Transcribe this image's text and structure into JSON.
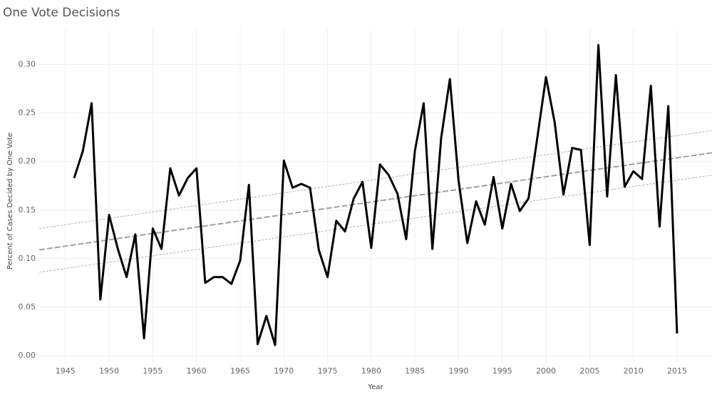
{
  "chart_data": {
    "type": "line",
    "title": "One Vote Decisions",
    "x_label": "Year",
    "y_label": "Percent of Cases Decided by One Vote",
    "x": [
      1946,
      1947,
      1948,
      1949,
      1950,
      1951,
      1952,
      1953,
      1954,
      1955,
      1956,
      1957,
      1958,
      1959,
      1960,
      1961,
      1962,
      1963,
      1964,
      1965,
      1966,
      1967,
      1968,
      1969,
      1970,
      1971,
      1972,
      1973,
      1974,
      1975,
      1976,
      1977,
      1978,
      1979,
      1980,
      1981,
      1982,
      1983,
      1984,
      1985,
      1986,
      1987,
      1988,
      1989,
      1990,
      1991,
      1992,
      1993,
      1994,
      1995,
      1996,
      1997,
      1998,
      1999,
      2000,
      2001,
      2002,
      2003,
      2004,
      2005,
      2006,
      2007,
      2008,
      2009,
      2010,
      2011,
      2012,
      2013,
      2014,
      2015
    ],
    "series": [
      {
        "color": "#000000",
        "values": [
          0.183,
          0.211,
          0.26,
          0.058,
          0.145,
          0.11,
          0.081,
          0.125,
          0.018,
          0.131,
          0.11,
          0.193,
          0.165,
          0.183,
          0.193,
          0.075,
          0.081,
          0.081,
          0.074,
          0.098,
          0.176,
          0.012,
          0.041,
          0.011,
          0.201,
          0.173,
          0.177,
          0.173,
          0.109,
          0.081,
          0.139,
          0.128,
          0.162,
          0.179,
          0.111,
          0.197,
          0.186,
          0.167,
          0.12,
          0.211,
          0.26,
          0.11,
          0.224,
          0.285,
          0.18,
          0.116,
          0.159,
          0.135,
          0.184,
          0.131,
          0.177,
          0.149,
          0.162,
          0.224,
          0.287,
          0.24,
          0.166,
          0.214,
          0.212,
          0.114,
          0.32,
          0.164,
          0.289,
          0.174,
          0.19,
          0.182,
          0.278,
          0.133,
          0.257,
          0.023
        ]
      }
    ],
    "trend_lines": [
      {
        "x": [
          1942,
          2019
        ],
        "values": [
          0.109,
          0.209
        ],
        "color": "#a0a0a0",
        "dash": "8,3"
      },
      {
        "x": [
          1942,
          2019
        ],
        "values": [
          0.131,
          0.232
        ],
        "color": "#b0b0b0",
        "dash": "3,2"
      },
      {
        "x": [
          1942,
          2019
        ],
        "values": [
          0.086,
          0.186
        ],
        "color": "#b0b0b0",
        "dash": "3,2"
      }
    ],
    "xlim": [
      1942,
      2019
    ],
    "xticks": [
      1945,
      1950,
      1955,
      1960,
      1965,
      1970,
      1975,
      1980,
      1985,
      1990,
      1995,
      2000,
      2005,
      2010,
      2015
    ],
    "ylim": [
      -0.008,
      0.337
    ],
    "yticks": [
      {
        "value": 0,
        "label": "0.00"
      },
      0.05,
      {
        "value": 0.1,
        "label": "0.10"
      },
      0.15,
      {
        "value": 0.2,
        "label": "0.20"
      },
      0.25,
      {
        "value": 0.3,
        "label": "0.30"
      }
    ],
    "grid": true
  }
}
